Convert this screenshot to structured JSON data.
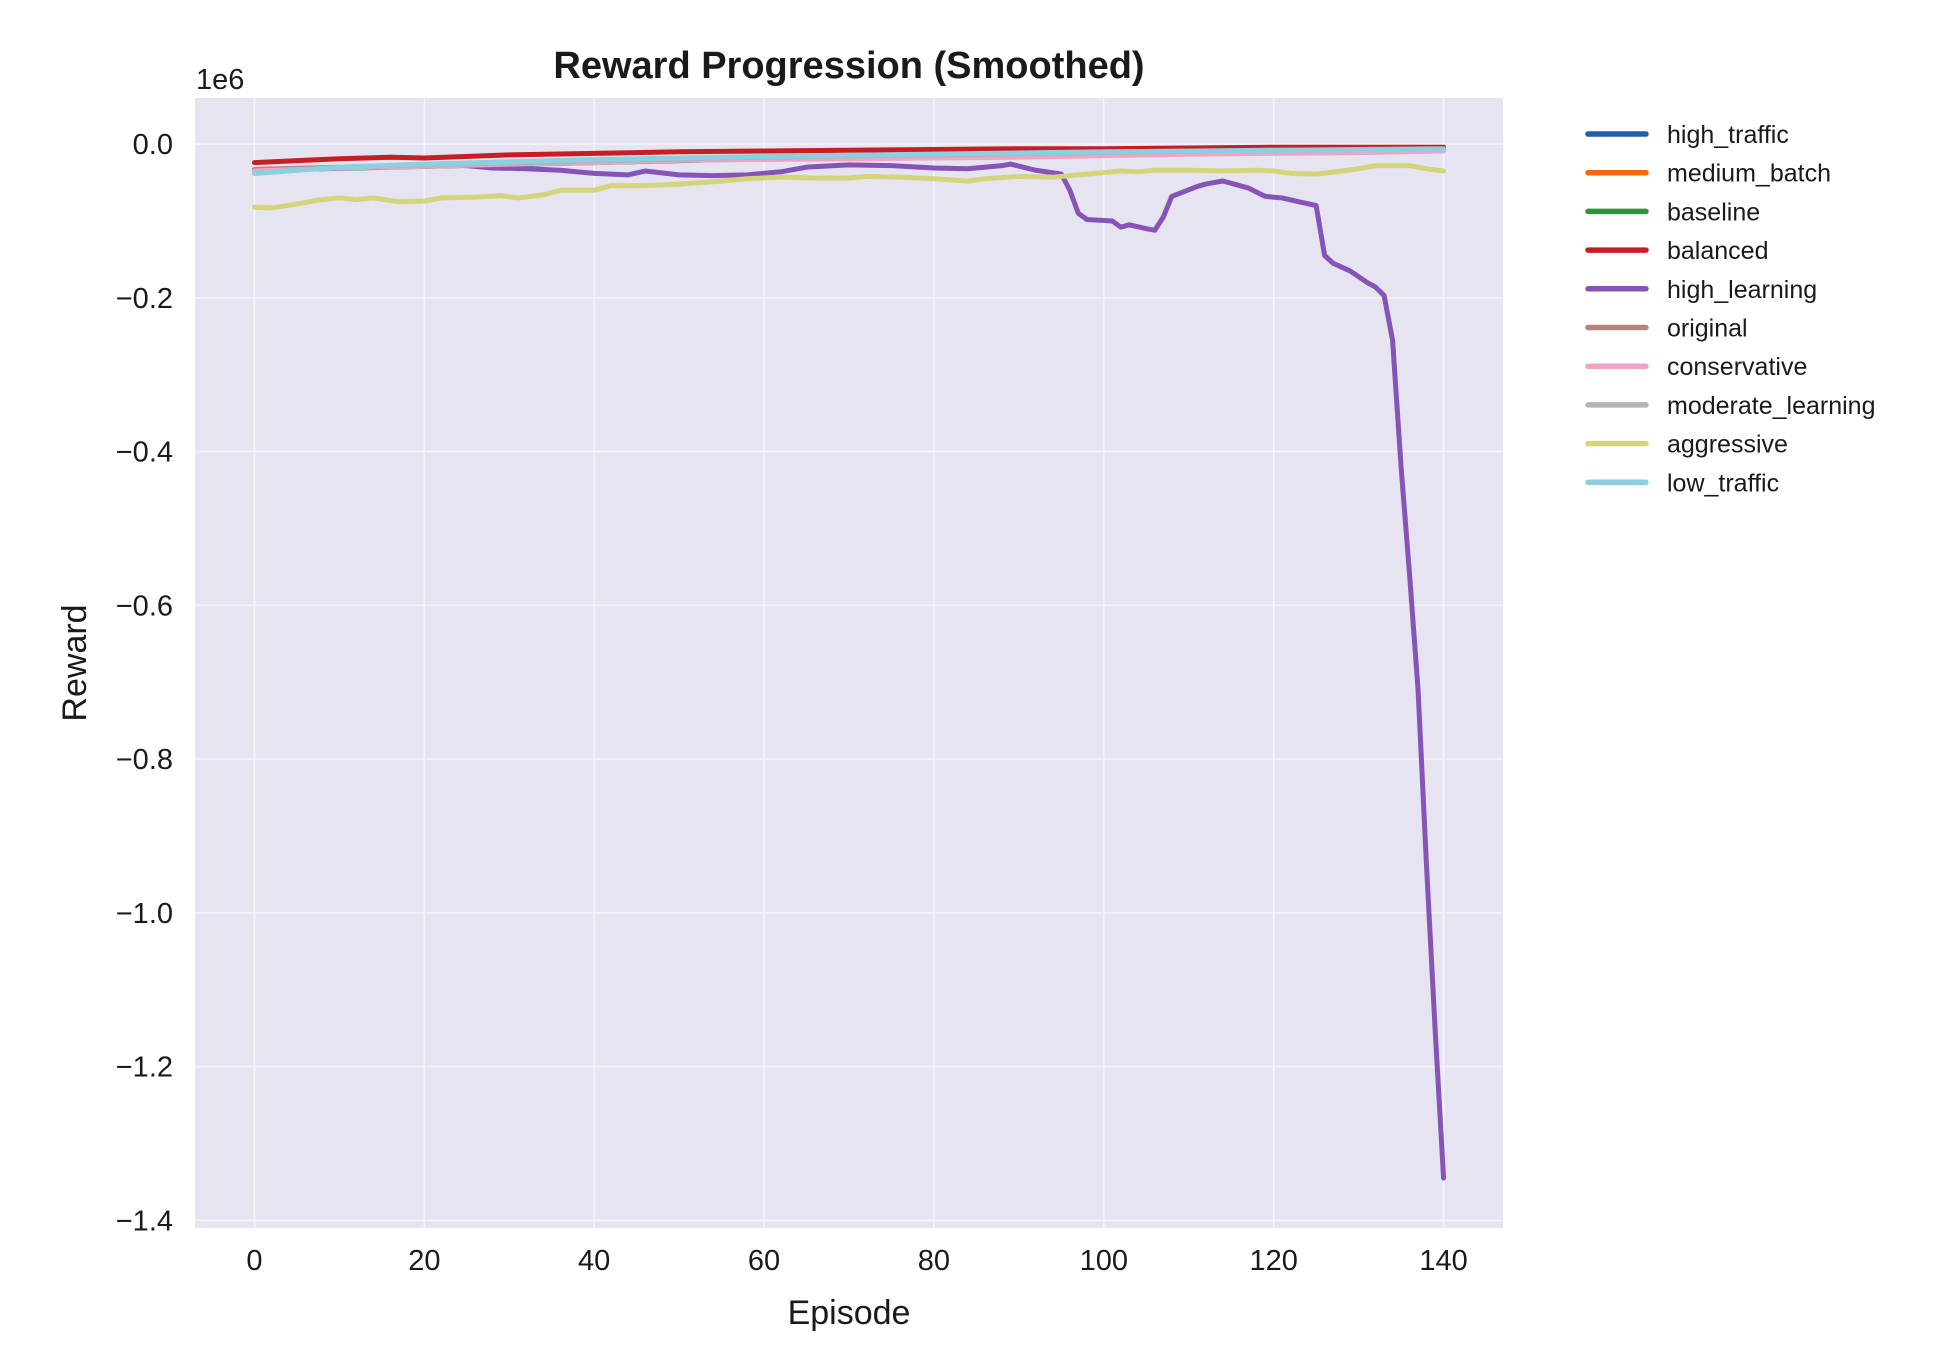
{
  "chart_data": {
    "type": "line",
    "title": "Reward Progression (Smoothed)",
    "xlabel": "Episode",
    "ylabel": "Reward",
    "y_scale_label": "1e6",
    "y_scale_factor": 1000000,
    "xlim": [
      -7,
      147
    ],
    "ylim": [
      -1.41,
      0.06
    ],
    "xticks": [
      0,
      20,
      40,
      60,
      80,
      100,
      120,
      140
    ],
    "xtick_labels": [
      "0",
      "20",
      "40",
      "60",
      "80",
      "100",
      "120",
      "140"
    ],
    "yticks": [
      0.0,
      -0.2,
      -0.4,
      -0.6,
      -0.8,
      -1.0,
      -1.2,
      -1.4
    ],
    "ytick_labels": [
      "0.0",
      "−0.2",
      "−0.4",
      "−0.6",
      "−0.8",
      "−1.0",
      "−1.2",
      "−1.4"
    ],
    "grid": true,
    "background": "#e6e4f0",
    "legend_position": "outside-right",
    "series": [
      {
        "name": "high_traffic",
        "color": "#1f5fa8",
        "points": [
          [
            0,
            -0.034
          ],
          [
            20,
            -0.029
          ],
          [
            40,
            -0.024
          ],
          [
            60,
            -0.019
          ],
          [
            80,
            -0.015
          ],
          [
            100,
            -0.012
          ],
          [
            120,
            -0.008
          ],
          [
            140,
            -0.006
          ]
        ]
      },
      {
        "name": "medium_batch",
        "color": "#ef6a17",
        "points": [
          [
            0,
            -0.033
          ],
          [
            20,
            -0.028
          ],
          [
            40,
            -0.023
          ],
          [
            60,
            -0.019
          ],
          [
            80,
            -0.015
          ],
          [
            100,
            -0.011
          ],
          [
            120,
            -0.008
          ],
          [
            140,
            -0.006
          ]
        ]
      },
      {
        "name": "baseline",
        "color": "#2a9437",
        "points": [
          [
            0,
            -0.034
          ],
          [
            20,
            -0.028
          ],
          [
            40,
            -0.023
          ],
          [
            60,
            -0.018
          ],
          [
            80,
            -0.014
          ],
          [
            100,
            -0.011
          ],
          [
            120,
            -0.008
          ],
          [
            140,
            -0.006
          ]
        ]
      },
      {
        "name": "balanced",
        "color": "#c81d25",
        "points": [
          [
            0,
            -0.024
          ],
          [
            6,
            -0.021
          ],
          [
            10,
            -0.019
          ],
          [
            16,
            -0.017
          ],
          [
            20,
            -0.018
          ],
          [
            30,
            -0.014
          ],
          [
            40,
            -0.012
          ],
          [
            50,
            -0.01
          ],
          [
            60,
            -0.009
          ],
          [
            70,
            -0.008
          ],
          [
            80,
            -0.007
          ],
          [
            90,
            -0.006
          ],
          [
            100,
            -0.006
          ],
          [
            110,
            -0.005
          ],
          [
            120,
            -0.004
          ],
          [
            130,
            -0.004
          ],
          [
            140,
            -0.004
          ]
        ]
      },
      {
        "name": "high_learning",
        "color": "#8653b7",
        "points": [
          [
            0,
            -0.035
          ],
          [
            5,
            -0.033
          ],
          [
            10,
            -0.031
          ],
          [
            15,
            -0.029
          ],
          [
            20,
            -0.027
          ],
          [
            25,
            -0.028
          ],
          [
            28,
            -0.031
          ],
          [
            32,
            -0.032
          ],
          [
            36,
            -0.034
          ],
          [
            40,
            -0.038
          ],
          [
            44,
            -0.04
          ],
          [
            46,
            -0.035
          ],
          [
            50,
            -0.04
          ],
          [
            54,
            -0.041
          ],
          [
            58,
            -0.04
          ],
          [
            62,
            -0.036
          ],
          [
            65,
            -0.03
          ],
          [
            70,
            -0.027
          ],
          [
            75,
            -0.028
          ],
          [
            80,
            -0.031
          ],
          [
            84,
            -0.032
          ],
          [
            88,
            -0.028
          ],
          [
            89,
            -0.026
          ],
          [
            92,
            -0.034
          ],
          [
            95,
            -0.039
          ],
          [
            96,
            -0.06
          ],
          [
            97,
            -0.09
          ],
          [
            98,
            -0.098
          ],
          [
            101,
            -0.1
          ],
          [
            102,
            -0.108
          ],
          [
            103,
            -0.105
          ],
          [
            105,
            -0.11
          ],
          [
            106,
            -0.112
          ],
          [
            107,
            -0.095
          ],
          [
            108,
            -0.068
          ],
          [
            111,
            -0.055
          ],
          [
            112,
            -0.052
          ],
          [
            114,
            -0.048
          ],
          [
            117,
            -0.057
          ],
          [
            119,
            -0.068
          ],
          [
            121,
            -0.07
          ],
          [
            123,
            -0.075
          ],
          [
            125,
            -0.08
          ],
          [
            126,
            -0.145
          ],
          [
            127,
            -0.155
          ],
          [
            129,
            -0.165
          ],
          [
            131,
            -0.18
          ],
          [
            132,
            -0.186
          ],
          [
            133,
            -0.197
          ],
          [
            134,
            -0.255
          ],
          [
            135,
            -0.42
          ],
          [
            136,
            -0.56
          ],
          [
            137,
            -0.71
          ],
          [
            138,
            -0.94
          ],
          [
            139,
            -1.15
          ],
          [
            140,
            -1.345
          ]
        ]
      },
      {
        "name": "original",
        "color": "#b5847c",
        "points": [
          [
            0,
            -0.033
          ],
          [
            20,
            -0.027
          ],
          [
            40,
            -0.022
          ],
          [
            60,
            -0.018
          ],
          [
            80,
            -0.014
          ],
          [
            100,
            -0.011
          ],
          [
            120,
            -0.008
          ],
          [
            140,
            -0.006
          ]
        ]
      },
      {
        "name": "conservative",
        "color": "#f0a3c7",
        "points": [
          [
            0,
            -0.035
          ],
          [
            10,
            -0.031
          ],
          [
            20,
            -0.029
          ],
          [
            30,
            -0.026
          ],
          [
            40,
            -0.024
          ],
          [
            50,
            -0.021
          ],
          [
            60,
            -0.02
          ],
          [
            70,
            -0.019
          ],
          [
            80,
            -0.018
          ],
          [
            90,
            -0.017
          ],
          [
            100,
            -0.015
          ],
          [
            110,
            -0.013
          ],
          [
            120,
            -0.012
          ],
          [
            130,
            -0.011
          ],
          [
            140,
            -0.009
          ]
        ]
      },
      {
        "name": "moderate_learning",
        "color": "#b3b3b3",
        "points": [
          [
            0,
            -0.038
          ],
          [
            5,
            -0.034
          ],
          [
            10,
            -0.03
          ],
          [
            20,
            -0.027
          ],
          [
            40,
            -0.022
          ],
          [
            60,
            -0.017
          ],
          [
            80,
            -0.014
          ],
          [
            100,
            -0.011
          ],
          [
            120,
            -0.008
          ],
          [
            140,
            -0.006
          ]
        ]
      },
      {
        "name": "aggressive",
        "color": "#d4d47a",
        "points": [
          [
            0,
            -0.082
          ],
          [
            2,
            -0.083
          ],
          [
            5,
            -0.078
          ],
          [
            8,
            -0.072
          ],
          [
            10,
            -0.07
          ],
          [
            12,
            -0.072
          ],
          [
            14,
            -0.07
          ],
          [
            17,
            -0.075
          ],
          [
            20,
            -0.074
          ],
          [
            22,
            -0.07
          ],
          [
            26,
            -0.069
          ],
          [
            29,
            -0.067
          ],
          [
            31,
            -0.07
          ],
          [
            34,
            -0.066
          ],
          [
            36,
            -0.06
          ],
          [
            40,
            -0.06
          ],
          [
            42,
            -0.054
          ],
          [
            46,
            -0.054
          ],
          [
            50,
            -0.052
          ],
          [
            54,
            -0.049
          ],
          [
            58,
            -0.045
          ],
          [
            62,
            -0.043
          ],
          [
            66,
            -0.044
          ],
          [
            70,
            -0.044
          ],
          [
            72,
            -0.042
          ],
          [
            76,
            -0.043
          ],
          [
            80,
            -0.045
          ],
          [
            84,
            -0.048
          ],
          [
            86,
            -0.045
          ],
          [
            90,
            -0.042
          ],
          [
            94,
            -0.043
          ],
          [
            98,
            -0.039
          ],
          [
            102,
            -0.035
          ],
          [
            104,
            -0.036
          ],
          [
            106,
            -0.034
          ],
          [
            110,
            -0.034
          ],
          [
            114,
            -0.035
          ],
          [
            118,
            -0.034
          ],
          [
            120,
            -0.035
          ],
          [
            122,
            -0.038
          ],
          [
            125,
            -0.039
          ],
          [
            128,
            -0.035
          ],
          [
            130,
            -0.032
          ],
          [
            132,
            -0.028
          ],
          [
            134,
            -0.028
          ],
          [
            136,
            -0.028
          ],
          [
            138,
            -0.032
          ],
          [
            140,
            -0.035
          ]
        ]
      },
      {
        "name": "low_traffic",
        "color": "#8bd0e0",
        "points": [
          [
            0,
            -0.038
          ],
          [
            5,
            -0.034
          ],
          [
            10,
            -0.03
          ],
          [
            20,
            -0.026
          ],
          [
            40,
            -0.02
          ],
          [
            60,
            -0.016
          ],
          [
            80,
            -0.013
          ],
          [
            100,
            -0.01
          ],
          [
            120,
            -0.008
          ],
          [
            140,
            -0.007
          ]
        ]
      }
    ]
  }
}
